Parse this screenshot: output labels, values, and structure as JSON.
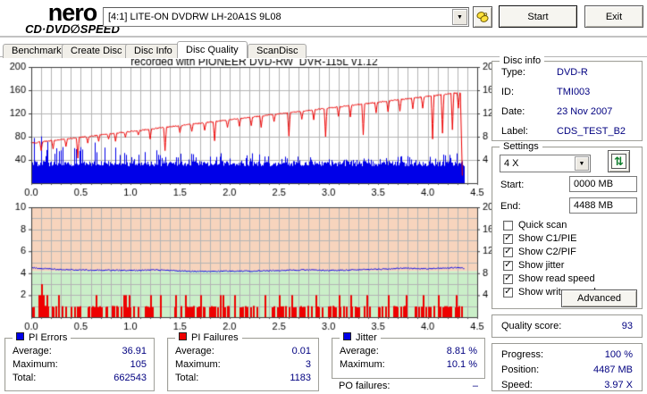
{
  "window": {
    "app_logo_line1": "nero",
    "app_logo_line2": "CD·DVD∅SPEED"
  },
  "toolbar": {
    "drive_selector": "[4:1]   LITE-ON DVDRW LH-20A1S 9L08",
    "dropdown_arrow": "▼",
    "hand_button": "hand-tool",
    "start_label": "Start",
    "exit_label": "Exit"
  },
  "tabs": [
    {
      "label": "Benchmark",
      "active": false
    },
    {
      "label": "Create Disc",
      "active": false
    },
    {
      "label": "Disc Info",
      "active": false
    },
    {
      "label": "Disc Quality",
      "active": true
    },
    {
      "label": "ScanDisc",
      "active": false
    }
  ],
  "colors": {
    "value_text": "#000080",
    "pie_bars": "#0000e8",
    "pif_bars": "#ee0000",
    "write_speed_line": "#ee0000",
    "jitter_line": "#0000e8",
    "zone_good": "#caefc8",
    "zone_warn": "#f7d4bd",
    "grid": "#b4b4b4"
  },
  "chart_data": [
    {
      "id": "pie_write_speed",
      "type": "mixed",
      "title": "recorded with PIONEER DVD-RW  DVR-115L v1.12",
      "x_axis": {
        "min": 0,
        "max": 4.5,
        "label_step": 0.5,
        "minor_step": 0.1,
        "tick_labels": [
          "0.0",
          "0.5",
          "1.0",
          "1.5",
          "2.0",
          "2.5",
          "3.0",
          "3.5",
          "4.0",
          "4.5"
        ]
      },
      "left_axis": {
        "min": 0,
        "max": 200,
        "ticks": [
          40,
          80,
          120,
          160,
          200
        ],
        "grid_step": 40
      },
      "right_axis": {
        "min": 0,
        "max": 20,
        "ticks": [
          4,
          8,
          12,
          16,
          20
        ]
      },
      "data_end_x": 4.37,
      "series": [
        {
          "name": "PI Errors",
          "kind": "bars",
          "axis": "left",
          "color": "#0000e8",
          "base_level": 34,
          "envelope_step": 0.1,
          "envelope": [
            97,
            82,
            75,
            86,
            94,
            78,
            72,
            74,
            70,
            73,
            62,
            58,
            63,
            56,
            58,
            60,
            58,
            52,
            50,
            52,
            50,
            56,
            62,
            58,
            48,
            46,
            55,
            50,
            45,
            44,
            44,
            43,
            44,
            46,
            48,
            46,
            48,
            50,
            52,
            52,
            55,
            58,
            62,
            68,
            72,
            72
          ]
        },
        {
          "name": "Write speed",
          "kind": "trend_line",
          "axis": "right",
          "color": "#ee0000",
          "start_value": 6.9,
          "end_value": 15.6,
          "end_x": 4.33,
          "noise": 0.1,
          "final_drop": [
            4.35,
            1.3
          ],
          "dips": [
            [
              0.1,
              5.6
            ],
            [
              0.22,
              5.9
            ],
            [
              0.35,
              6.3
            ],
            [
              0.47,
              4.3
            ],
            [
              0.57,
              6.9
            ],
            [
              0.68,
              7.2
            ],
            [
              0.78,
              7.6
            ],
            [
              0.85,
              7.2
            ],
            [
              0.95,
              7.9
            ],
            [
              1.08,
              8.3
            ],
            [
              1.2,
              7.6
            ],
            [
              1.35,
              5.6
            ],
            [
              1.5,
              8.7
            ],
            [
              1.62,
              8.9
            ],
            [
              1.75,
              9.1
            ],
            [
              1.85,
              7.3
            ],
            [
              1.98,
              9.6
            ],
            [
              2.1,
              9.8
            ],
            [
              2.22,
              9.9
            ],
            [
              2.32,
              9.6
            ],
            [
              2.45,
              10.6
            ],
            [
              2.6,
              8.1
            ],
            [
              2.73,
              11.0
            ],
            [
              2.85,
              10.9
            ],
            [
              2.97,
              8.0
            ],
            [
              3.1,
              11.5
            ],
            [
              3.22,
              11.4
            ],
            [
              3.35,
              8.3
            ],
            [
              3.48,
              12.1
            ],
            [
              3.6,
              12.3
            ],
            [
              3.72,
              12.4
            ],
            [
              3.85,
              12.8
            ],
            [
              3.95,
              12.9
            ],
            [
              4.05,
              7.6
            ],
            [
              4.15,
              8.6
            ],
            [
              4.25,
              9.2
            ],
            [
              4.31,
              12.9
            ]
          ]
        }
      ]
    },
    {
      "id": "pif_jitter",
      "type": "mixed",
      "title": "",
      "x_axis": {
        "min": 0,
        "max": 4.5,
        "label_step": 0.5,
        "minor_step": 0.1,
        "tick_labels": [
          "0.0",
          "0.5",
          "1.0",
          "1.5",
          "2.0",
          "2.5",
          "3.0",
          "3.5",
          "4.0",
          "4.5"
        ]
      },
      "left_axis": {
        "min": 0,
        "max": 10,
        "ticks": [
          2,
          4,
          6,
          8,
          10
        ],
        "grid_step": 1
      },
      "right_axis": {
        "min": 0,
        "max": 20,
        "ticks": [
          4,
          8,
          12,
          16,
          20
        ]
      },
      "data_end_x": 4.37,
      "zones": [
        {
          "from": 0,
          "to": 4.2,
          "color": "#caefc8"
        },
        {
          "from": 4.2,
          "to": 10,
          "color": "#f7d4bd"
        }
      ],
      "series": [
        {
          "name": "PI Failures",
          "kind": "bars_spikes",
          "axis": "left",
          "color": "#ee0000",
          "density": 0.4,
          "base_height": 1,
          "spikes": [
            [
              0.07,
              2
            ],
            [
              0.09,
              2
            ],
            [
              0.1,
              3
            ],
            [
              0.12,
              2
            ],
            [
              0.15,
              2
            ],
            [
              0.27,
              2
            ],
            [
              0.65,
              2
            ],
            [
              0.93,
              2
            ],
            [
              0.95,
              2
            ],
            [
              0.98,
              2
            ],
            [
              1.2,
              2
            ],
            [
              1.3,
              2
            ],
            [
              1.45,
              2
            ],
            [
              1.55,
              2
            ],
            [
              1.7,
              2
            ],
            [
              1.9,
              2
            ],
            [
              1.93,
              2
            ],
            [
              2.05,
              2
            ],
            [
              2.35,
              2
            ],
            [
              2.5,
              2
            ],
            [
              2.62,
              2
            ],
            [
              2.87,
              2
            ],
            [
              3.1,
              2
            ],
            [
              3.22,
              2
            ],
            [
              3.38,
              2
            ],
            [
              3.6,
              2
            ],
            [
              3.78,
              2
            ],
            [
              3.95,
              2
            ],
            [
              4.1,
              2
            ],
            [
              4.28,
              2
            ]
          ]
        },
        {
          "name": "Jitter",
          "kind": "points_line",
          "axis": "left",
          "color": "#0000e8",
          "points_step": 0.25,
          "noise": 0.05,
          "points": [
            4.5,
            4.35,
            4.3,
            4.28,
            4.25,
            4.3,
            4.2,
            4.15,
            4.2,
            4.2,
            4.25,
            4.3,
            4.25,
            4.3,
            4.35,
            4.45,
            4.4,
            4.5,
            4.4
          ]
        }
      ]
    }
  ],
  "disc_info": {
    "title": "Disc info",
    "rows": [
      {
        "label": "Type:",
        "value": "DVD-R"
      },
      {
        "label": "ID:",
        "value": "TMI003"
      },
      {
        "label": "Date:",
        "value": "23 Nov 2007"
      },
      {
        "label": "Label:",
        "value": "CDS_TEST_B2"
      }
    ]
  },
  "settings": {
    "title": "Settings",
    "speed_selected": "4 X",
    "dropdown_arrow": "▼",
    "refresh_icon": "⇅",
    "start_label": "Start:",
    "start_value": "0000 MB",
    "end_label": "End:",
    "end_value": "4488 MB",
    "checkboxes": [
      {
        "label": "Quick scan",
        "checked": false
      },
      {
        "label": "Show C1/PIE",
        "checked": true
      },
      {
        "label": "Show C2/PIF",
        "checked": true
      },
      {
        "label": "Show jitter",
        "checked": true
      },
      {
        "label": "Show read speed",
        "checked": true
      },
      {
        "label": "Show write speed",
        "checked": true
      }
    ],
    "advanced_label": "Advanced"
  },
  "quality": {
    "label": "Quality score:",
    "value": "93"
  },
  "progress": {
    "rows": [
      {
        "label": "Progress:",
        "value": "100 %"
      },
      {
        "label": "Position:",
        "value": "4487 MB"
      },
      {
        "label": "Speed:",
        "value": "3.97 X"
      }
    ]
  },
  "stats": {
    "pi_errors": {
      "title": "PI Errors",
      "rows": [
        {
          "label": "Average:",
          "value": "36.91"
        },
        {
          "label": "Maximum:",
          "value": "105"
        },
        {
          "label": "Total:",
          "value": "662543"
        }
      ]
    },
    "pi_failures": {
      "title": "PI Failures",
      "rows": [
        {
          "label": "Average:",
          "value": "0.01"
        },
        {
          "label": "Maximum:",
          "value": "3"
        },
        {
          "label": "Total:",
          "value": "1183"
        }
      ]
    },
    "jitter": {
      "title": "Jitter",
      "rows": [
        {
          "label": "Average:",
          "value": "8.81 %"
        },
        {
          "label": "Maximum:",
          "value": "10.1 %"
        }
      ]
    },
    "po_failures": {
      "label": "PO failures:",
      "value": "–"
    }
  }
}
